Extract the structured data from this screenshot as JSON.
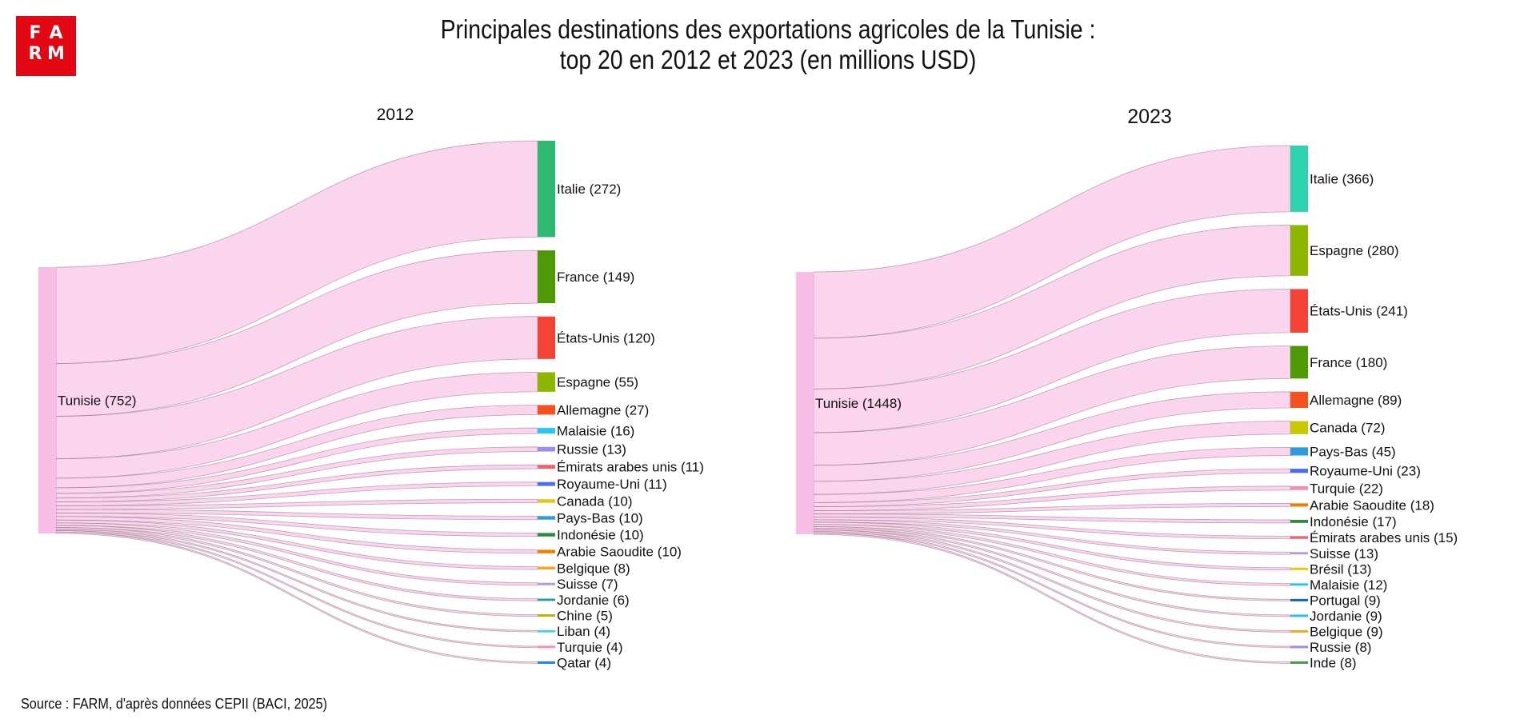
{
  "logo": {
    "row1": [
      "F",
      "A"
    ],
    "row2": [
      "R",
      "M"
    ]
  },
  "title_line1": "Principales destinations des exportations agricoles de la Tunisie :",
  "title_line2": "top 20 en 2012 et 2023 (en millions USD)",
  "source": "Source : FARM, d'après données CEPII (BACI, 2025)",
  "colors": {
    "link": "#f7b3df",
    "source_node": "#f8bde6",
    "logo": "#e30613"
  },
  "chart_data": [
    {
      "type": "sankey",
      "title": "2012",
      "source": {
        "name": "Tunisie",
        "value": 752,
        "label": "Tunisie (752)"
      },
      "targets": [
        {
          "name": "Italie",
          "value": 272,
          "label": "Italie (272)",
          "color": "#2eb872"
        },
        {
          "name": "France",
          "value": 149,
          "label": "France (149)",
          "color": "#4e9a06"
        },
        {
          "name": "États-Unis",
          "value": 120,
          "label": "États-Unis (120)",
          "color": "#f44336"
        },
        {
          "name": "Espagne",
          "value": 55,
          "label": "Espagne (55)",
          "color": "#8db600"
        },
        {
          "name": "Allemagne",
          "value": 27,
          "label": "Allemagne (27)",
          "color": "#f4511e"
        },
        {
          "name": "Malaisie",
          "value": 16,
          "label": "Malaisie (16)",
          "color": "#29c5f6"
        },
        {
          "name": "Russie",
          "value": 13,
          "label": "Russie (13)",
          "color": "#9d8df1"
        },
        {
          "name": "Émirats arabes unis",
          "value": 11,
          "label": "Émirats arabes unis (11)",
          "color": "#f06070"
        },
        {
          "name": "Royaume-Uni",
          "value": 11,
          "label": "Royaume-Uni (11)",
          "color": "#4a6cf7"
        },
        {
          "name": "Canada",
          "value": 10,
          "label": "Canada (10)",
          "color": "#e6c619"
        },
        {
          "name": "Pays-Bas",
          "value": 10,
          "label": "Pays-Bas (10)",
          "color": "#2d9cdb"
        },
        {
          "name": "Indonésie",
          "value": 10,
          "label": "Indonésie (10)",
          "color": "#2e8b3e"
        },
        {
          "name": "Arabie Saoudite",
          "value": 10,
          "label": "Arabie Saoudite (10)",
          "color": "#f57c00"
        },
        {
          "name": "Belgique",
          "value": 8,
          "label": "Belgique (8)",
          "color": "#f5a623"
        },
        {
          "name": "Suisse",
          "value": 7,
          "label": "Suisse (7)",
          "color": "#b39ddb"
        },
        {
          "name": "Jordanie",
          "value": 6,
          "label": "Jordanie (6)",
          "color": "#26a69a"
        },
        {
          "name": "Chine",
          "value": 5,
          "label": "Chine (5)",
          "color": "#c0b000"
        },
        {
          "name": "Liban",
          "value": 4,
          "label": "Liban (4)",
          "color": "#4dd0e1"
        },
        {
          "name": "Turquie",
          "value": 4,
          "label": "Turquie (4)",
          "color": "#f48fb1"
        },
        {
          "name": "Qatar",
          "value": 4,
          "label": "Qatar (4)",
          "color": "#1e88e5"
        }
      ]
    },
    {
      "type": "sankey",
      "title": "2023",
      "source": {
        "name": "Tunisie",
        "value": 1448,
        "label": "Tunisie (1448)"
      },
      "targets": [
        {
          "name": "Italie",
          "value": 366,
          "label": "Italie (366)",
          "color": "#2fd3b0"
        },
        {
          "name": "Espagne",
          "value": 280,
          "label": "Espagne (280)",
          "color": "#8db600"
        },
        {
          "name": "États-Unis",
          "value": 241,
          "label": "États-Unis (241)",
          "color": "#f44336"
        },
        {
          "name": "France",
          "value": 180,
          "label": "France (180)",
          "color": "#4e9a06"
        },
        {
          "name": "Allemagne",
          "value": 89,
          "label": "Allemagne (89)",
          "color": "#f4511e"
        },
        {
          "name": "Canada",
          "value": 72,
          "label": "Canada (72)",
          "color": "#c8c800"
        },
        {
          "name": "Pays-Bas",
          "value": 45,
          "label": "Pays-Bas (45)",
          "color": "#2d9cdb"
        },
        {
          "name": "Royaume-Uni",
          "value": 23,
          "label": "Royaume-Uni (23)",
          "color": "#4a6cf7"
        },
        {
          "name": "Turquie",
          "value": 22,
          "label": "Turquie (22)",
          "color": "#f48fb1"
        },
        {
          "name": "Arabie Saoudite",
          "value": 18,
          "label": "Arabie Saoudite (18)",
          "color": "#f57c00"
        },
        {
          "name": "Indonésie",
          "value": 17,
          "label": "Indonésie (17)",
          "color": "#2e8b3e"
        },
        {
          "name": "Émirats arabes unis",
          "value": 15,
          "label": "Émirats arabes unis (15)",
          "color": "#f06070"
        },
        {
          "name": "Suisse",
          "value": 13,
          "label": "Suisse (13)",
          "color": "#b39ddb"
        },
        {
          "name": "Brésil",
          "value": 13,
          "label": "Brésil (13)",
          "color": "#f5c400"
        },
        {
          "name": "Malaisie",
          "value": 12,
          "label": "Malaisie (12)",
          "color": "#29c5f6"
        },
        {
          "name": "Portugal",
          "value": 9,
          "label": "Portugal (9)",
          "color": "#1565c0"
        },
        {
          "name": "Jordanie",
          "value": 9,
          "label": "Jordanie (9)",
          "color": "#26c6da"
        },
        {
          "name": "Belgique",
          "value": 9,
          "label": "Belgique (9)",
          "color": "#f5a623"
        },
        {
          "name": "Russie",
          "value": 8,
          "label": "Russie (8)",
          "color": "#9d8df1"
        },
        {
          "name": "Inde",
          "value": 8,
          "label": "Inde (8)",
          "color": "#43a047"
        }
      ]
    }
  ]
}
